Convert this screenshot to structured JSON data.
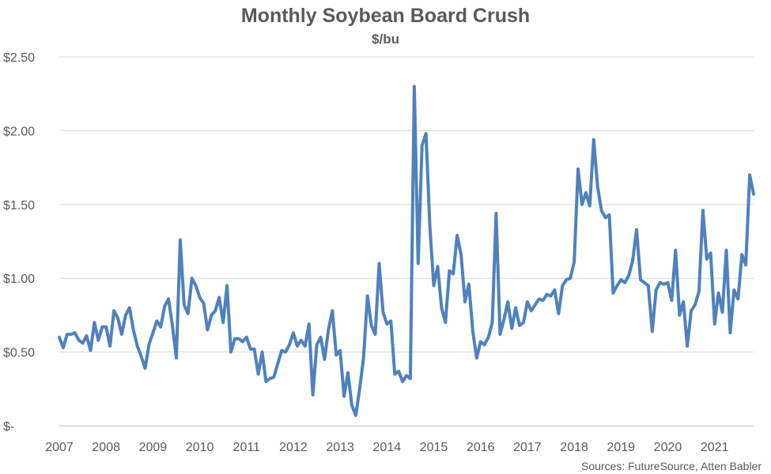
{
  "chart_data": {
    "type": "line",
    "title": "Monthly Soybean Board Crush",
    "subtitle": "$/bu",
    "source": "Sources: FutureSource, Atten Babler",
    "xlabel": "",
    "ylabel": "",
    "x_tick_labels": [
      "2007",
      "2008",
      "2009",
      "2010",
      "2011",
      "2012",
      "2013",
      "2014",
      "2015",
      "2016",
      "2017",
      "2018",
      "2019",
      "2020",
      "2021"
    ],
    "y_tick_labels": [
      "$-",
      "$0.50",
      "$1.00",
      "$1.50",
      "$2.00",
      "$2.50"
    ],
    "y_tick_values": [
      0,
      0.5,
      1.0,
      1.5,
      2.0,
      2.5
    ],
    "ylim": [
      0,
      2.5
    ],
    "x_start_year": 2007,
    "grid": true,
    "line_color": "#4F81BD",
    "series": [
      {
        "values": [
          0.6,
          0.53,
          0.62,
          0.62,
          0.63,
          0.58,
          0.56,
          0.61,
          0.51,
          0.7,
          0.58,
          0.67,
          0.67,
          0.54,
          0.78,
          0.73,
          0.62,
          0.75,
          0.8,
          0.65,
          0.54,
          0.47,
          0.39,
          0.55,
          0.63,
          0.71,
          0.67,
          0.81,
          0.86,
          0.68,
          0.46,
          1.26,
          0.82,
          0.76,
          1.0,
          0.95,
          0.87,
          0.83,
          0.65,
          0.75,
          0.78,
          0.87,
          0.7,
          0.95,
          0.5,
          0.59,
          0.59,
          0.57,
          0.6,
          0.52,
          0.52,
          0.35,
          0.5,
          0.3,
          0.32,
          0.33,
          0.42,
          0.51,
          0.5,
          0.55,
          0.63,
          0.54,
          0.58,
          0.54,
          0.69,
          0.21,
          0.55,
          0.6,
          0.45,
          0.65,
          0.78,
          0.48,
          0.51,
          0.2,
          0.36,
          0.14,
          0.07,
          0.25,
          0.46,
          0.88,
          0.68,
          0.62,
          1.1,
          0.77,
          0.69,
          0.71,
          0.35,
          0.37,
          0.3,
          0.34,
          0.32,
          2.3,
          1.1,
          1.9,
          1.98,
          1.35,
          0.95,
          1.08,
          0.8,
          0.7,
          1.05,
          1.03,
          1.29,
          1.16,
          0.84,
          0.96,
          0.64,
          0.46,
          0.57,
          0.55,
          0.6,
          0.7,
          1.44,
          0.62,
          0.72,
          0.84,
          0.66,
          0.8,
          0.68,
          0.7,
          0.84,
          0.78,
          0.82,
          0.86,
          0.85,
          0.89,
          0.88,
          0.92,
          0.76,
          0.95,
          0.99,
          1.0,
          1.11,
          1.74,
          1.5,
          1.58,
          1.49,
          1.94,
          1.62,
          1.46,
          1.41,
          1.43,
          0.9,
          0.95,
          0.99,
          0.97,
          1.02,
          1.12,
          1.33,
          0.99,
          0.97,
          0.95,
          0.64,
          0.92,
          0.97,
          0.96,
          0.97,
          0.85,
          1.19,
          0.75,
          0.84,
          0.54,
          0.78,
          0.82,
          0.91,
          1.46,
          1.13,
          1.17,
          0.69,
          0.9,
          0.77,
          1.19,
          0.63,
          0.92,
          0.86,
          1.16,
          1.09,
          1.7,
          1.57
        ]
      }
    ]
  }
}
